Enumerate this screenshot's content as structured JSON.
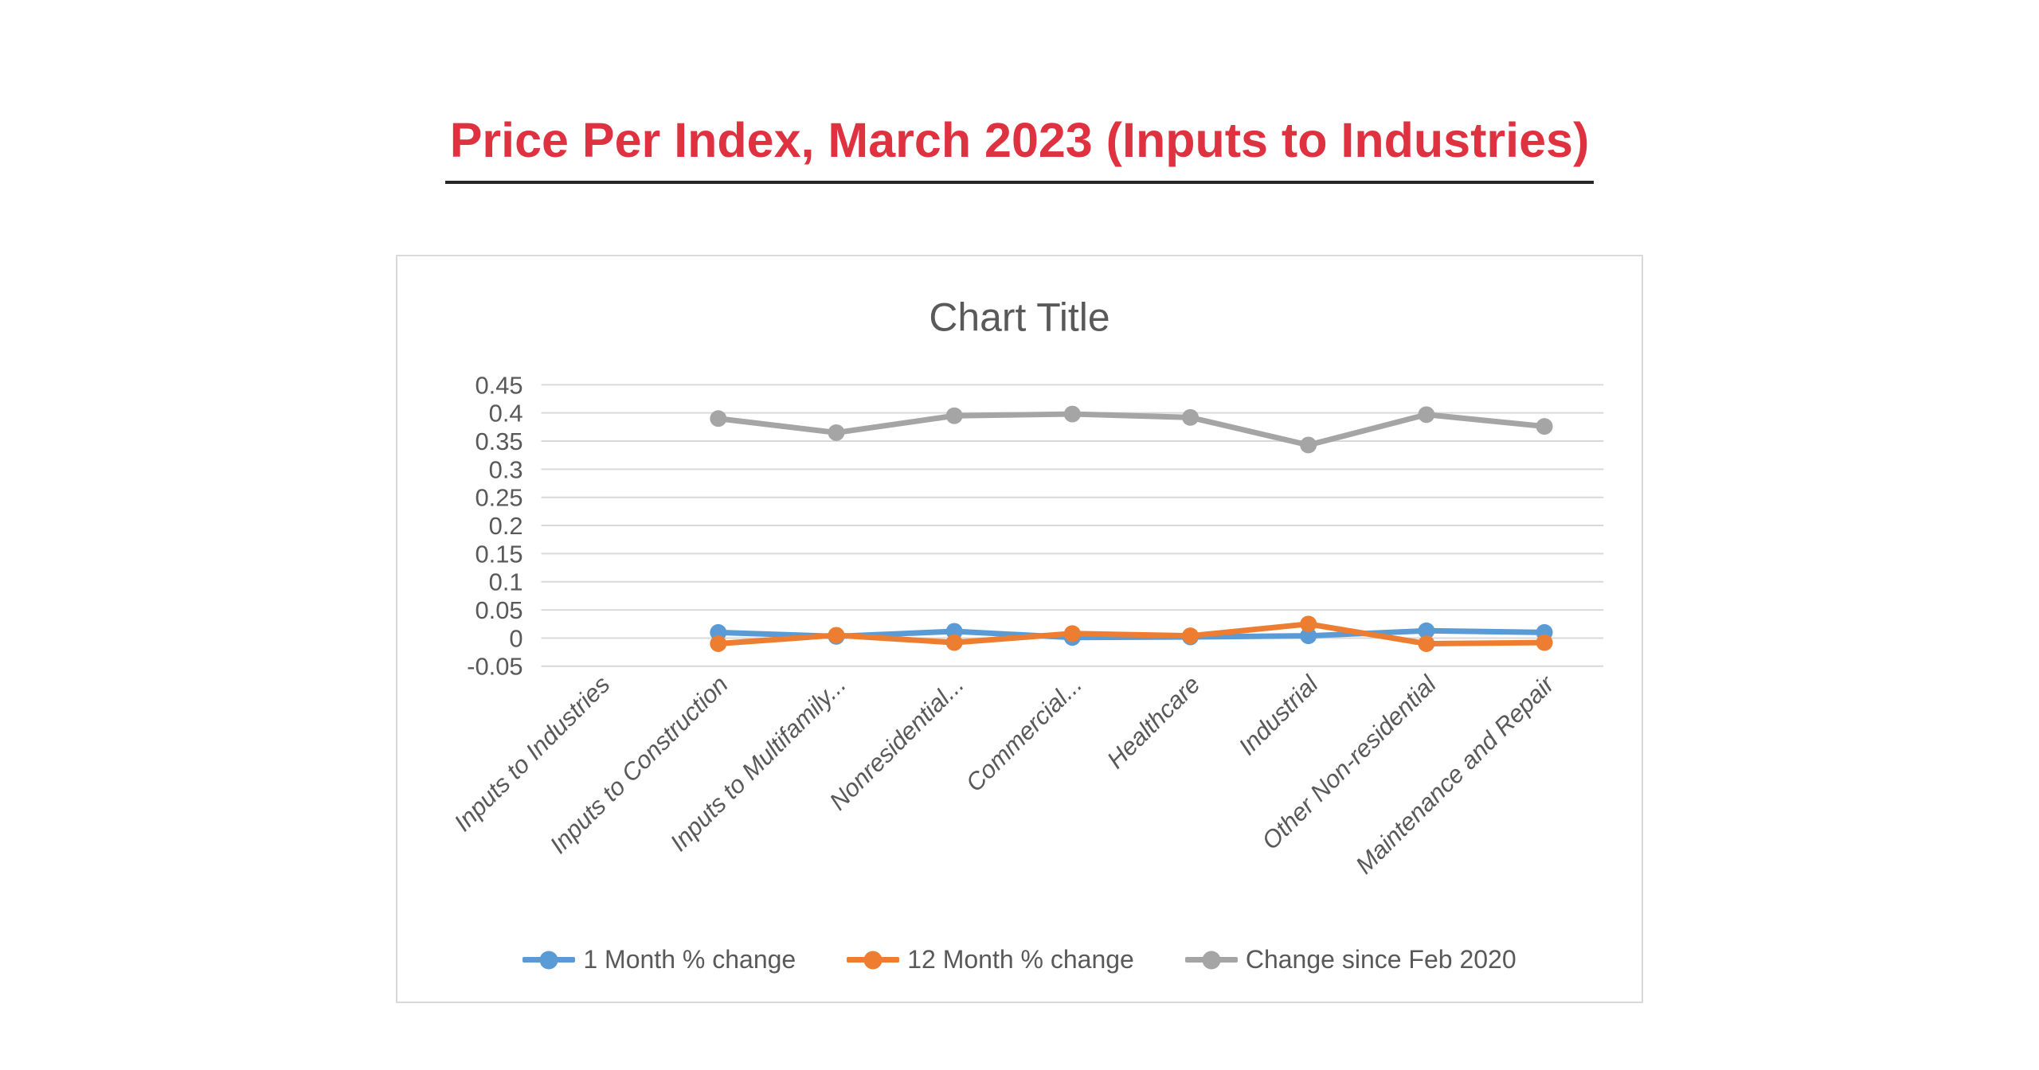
{
  "page": {
    "heading": "Price Per Index, March 2023 (Inputs to Industries)",
    "heading_color": "#DF3241",
    "heading_underline_color": "#262626",
    "background": "#FFFFFF"
  },
  "chart_data": {
    "type": "line",
    "title": "Chart Title",
    "categories": [
      "Inputs to Industries",
      "Inputs to Construction",
      "Inputs to Multifamily...",
      "Nonresidential...",
      "Commercial...",
      "Healthcare",
      "Industrial",
      "Other Non-residential",
      "Maintenance and Repair"
    ],
    "series": [
      {
        "name": "1 Month % change",
        "color": "#5B9BD5",
        "values": [
          null,
          0.01,
          0.003,
          0.012,
          0.001,
          0.002,
          0.004,
          0.013,
          0.01
        ]
      },
      {
        "name": "12 Month % change",
        "color": "#ED7D31",
        "values": [
          null,
          -0.01,
          0.005,
          -0.008,
          0.008,
          0.004,
          0.025,
          -0.01,
          -0.008
        ]
      },
      {
        "name": "Change since Feb 2020",
        "color": "#A5A5A5",
        "values": [
          null,
          0.39,
          0.365,
          0.395,
          0.398,
          0.392,
          0.343,
          0.397,
          0.376
        ]
      }
    ],
    "ylim": [
      -0.05,
      0.45
    ],
    "y_ticks": [
      0.45,
      0.4,
      0.35,
      0.3,
      0.25,
      0.2,
      0.15,
      0.1,
      0.05,
      0,
      -0.05
    ],
    "y_tick_labels": [
      "0.45",
      "0.4",
      "0.35",
      "0.3",
      "0.25",
      "0.2",
      "0.15",
      "0.1",
      "0.05",
      "0",
      "-0.05"
    ],
    "grid": true,
    "gridline_color": "#D9D9D9",
    "axis_label_color": "#595959",
    "legend_position": "bottom",
    "xlabel": "",
    "ylabel": ""
  }
}
